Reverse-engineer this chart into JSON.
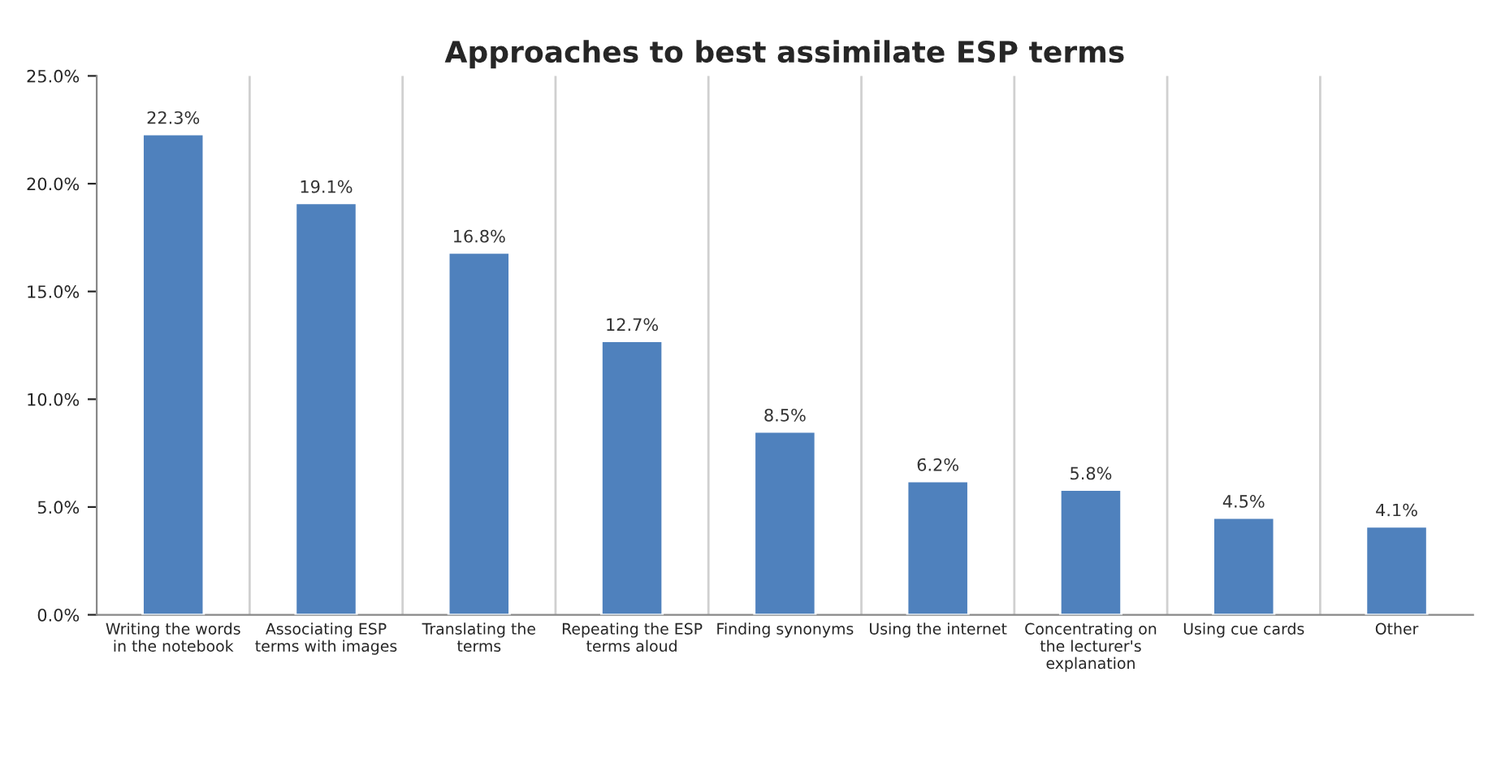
{
  "chart_data": {
    "type": "bar",
    "title": "Approaches to best assimilate ESP terms",
    "categories": [
      "Writing the words\nin the notebook",
      "Associating ESP\nterms with images",
      "Translating the\nterms",
      "Repeating the ESP\nterms aloud",
      "Finding synonyms",
      "Using the internet",
      "Concentrating on\nthe lecturer's\nexplanation",
      "Using cue cards",
      "Other"
    ],
    "values": [
      22.3,
      19.1,
      16.8,
      12.7,
      8.5,
      6.2,
      5.8,
      4.5,
      4.1
    ],
    "value_labels": [
      "22.3%",
      "19.1%",
      "16.8%",
      "12.7%",
      "8.5%",
      "6.2%",
      "5.8%",
      "4.5%",
      "4.1%"
    ],
    "color": "#4f81bd",
    "ylim": [
      0,
      25
    ],
    "yticks": [
      {
        "value": 0,
        "label": "0.0%"
      },
      {
        "value": 5,
        "label": "5.0%"
      },
      {
        "value": 10,
        "label": "10.0%"
      },
      {
        "value": 15,
        "label": "15.0%"
      },
      {
        "value": 20,
        "label": "20.0%"
      },
      {
        "value": 25,
        "label": "25.0%"
      }
    ],
    "grid": "x"
  }
}
